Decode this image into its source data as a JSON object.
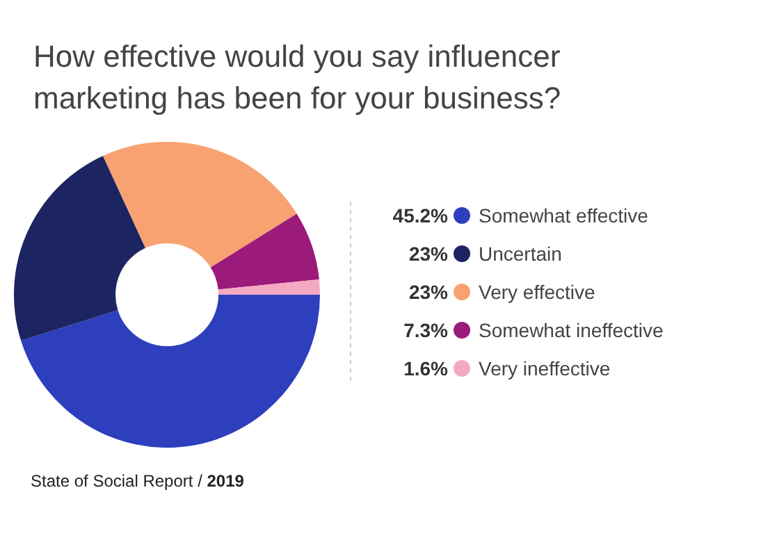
{
  "chart_data": {
    "type": "donut",
    "title": "How effective would you say influencer marketing has been for your business?",
    "categories": [
      "Somewhat effective",
      "Uncertain",
      "Very effective",
      "Somewhat ineffective",
      "Very ineffective"
    ],
    "values": [
      45.2,
      23,
      23,
      7.3,
      1.6
    ],
    "value_labels": [
      "45.2%",
      "23%",
      "23%",
      "7.3%",
      "1.6%"
    ],
    "colors": [
      "#2d3fbd",
      "#1c2462",
      "#f8a272",
      "#9c1a7a",
      "#f5a9c1"
    ],
    "legend": "right",
    "annotations": [
      "State of Social Report / 2019"
    ]
  }
}
